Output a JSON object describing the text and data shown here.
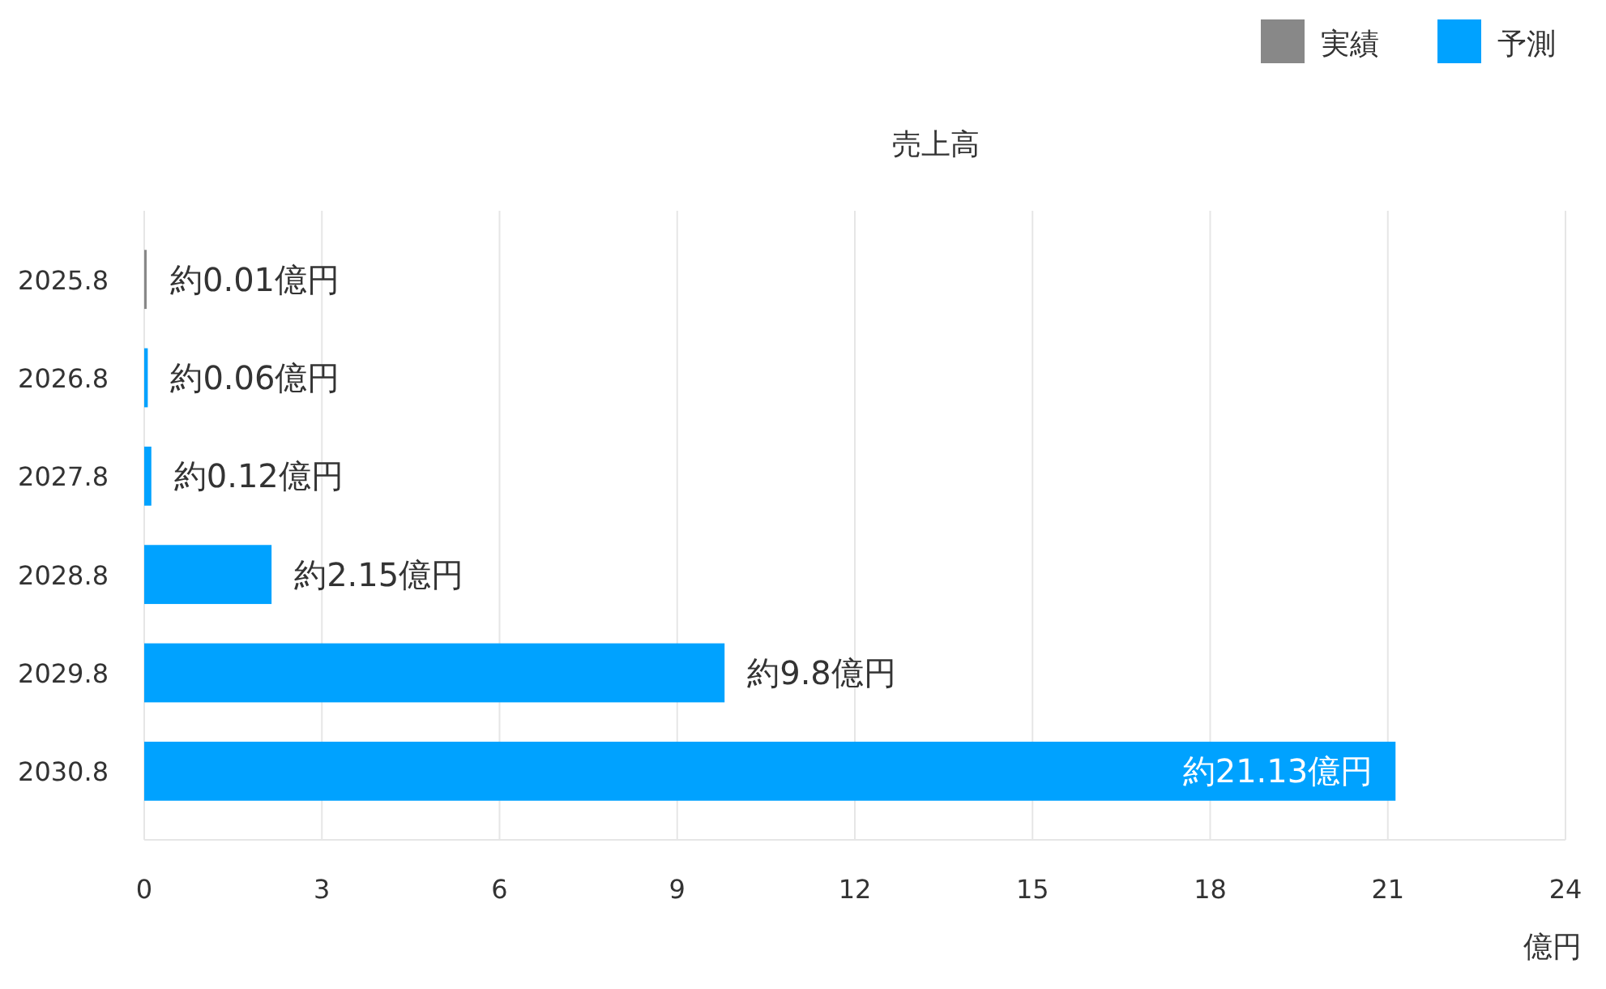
{
  "chart_data": {
    "type": "bar",
    "orientation": "horizontal",
    "title": "売上高",
    "xlabel": "億円",
    "categories": [
      "2025.8",
      "2026.8",
      "2027.8",
      "2028.8",
      "2029.8",
      "2030.8"
    ],
    "series": [
      {
        "name": "実績",
        "color": "#888888",
        "values": [
          0.01,
          null,
          null,
          null,
          null,
          null
        ],
        "value_labels": [
          "約0.01億円",
          null,
          null,
          null,
          null,
          null
        ]
      },
      {
        "name": "予測",
        "color": "#00a2ff",
        "values": [
          null,
          0.06,
          0.12,
          2.15,
          9.8,
          21.13
        ],
        "value_labels": [
          null,
          "約0.06億円",
          "約0.12億円",
          "約2.15億円",
          "約9.8億円",
          "約21.13億円"
        ]
      }
    ],
    "xlim": [
      0,
      24
    ],
    "xticks": [
      0,
      3,
      6,
      9,
      12,
      15,
      18,
      21,
      24
    ],
    "grid": "x",
    "legend": "top right"
  }
}
